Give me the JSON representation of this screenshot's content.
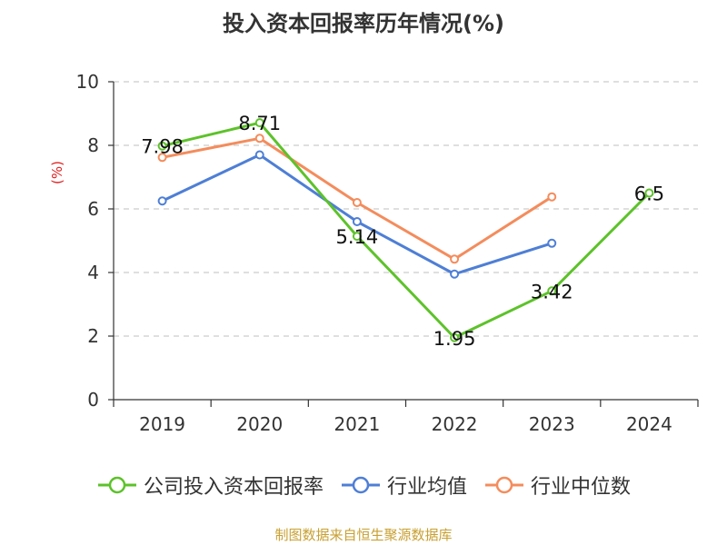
{
  "title": "投入资本回报率历年情况(%)",
  "source": "制图数据来自恒生聚源数据库",
  "chart_data": {
    "type": "line",
    "title": "投入资本回报率历年情况(%)",
    "ylabel": "(%)",
    "xlabel": "",
    "categories": [
      "2019",
      "2020",
      "2021",
      "2022",
      "2023",
      "2024"
    ],
    "ylim": [
      0,
      10
    ],
    "yticks": [
      0,
      2,
      4,
      6,
      8,
      10
    ],
    "grid": true,
    "legend_position": "bottom",
    "series": [
      {
        "name": "公司投入资本回报率",
        "color": "#5dc22a",
        "values": [
          7.98,
          8.71,
          5.14,
          1.95,
          3.42,
          6.5
        ],
        "labels": [
          "7.98",
          "8.71",
          "5.14",
          "1.95",
          "3.42",
          "6.5"
        ]
      },
      {
        "name": "行业均值",
        "color": "#4e7fd6",
        "values": [
          6.25,
          7.7,
          5.6,
          3.95,
          4.92,
          null
        ]
      },
      {
        "name": "行业中位数",
        "color": "#f48c5c",
        "values": [
          7.62,
          8.22,
          6.2,
          4.42,
          6.38,
          null
        ]
      }
    ]
  }
}
